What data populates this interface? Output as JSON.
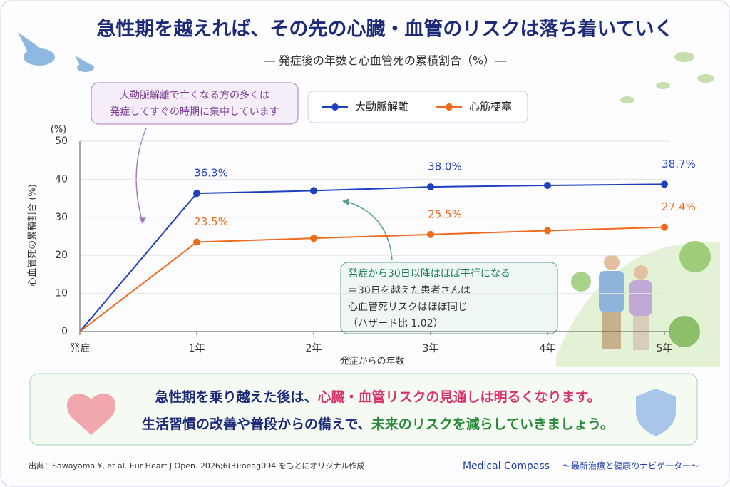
{
  "header": {
    "title": "急性期を越えれば、その先の心臓・血管のリスクは落ち着いていく",
    "subtitle": "― 発症後の年数と心血管死の累積割合（%）―"
  },
  "chart_data": {
    "type": "line",
    "categories": [
      "発症",
      "1年",
      "2年",
      "3年",
      "4年",
      "5年"
    ],
    "series": [
      {
        "name": "大動脈解離",
        "color": "#1f3fbf",
        "values": [
          0,
          36.3,
          37.0,
          38.0,
          38.4,
          38.7
        ],
        "value_labels": [
          null,
          "36.3%",
          null,
          "38.0%",
          null,
          "38.7%"
        ]
      },
      {
        "name": "心筋梗塞",
        "color": "#f06a1e",
        "values": [
          0,
          23.5,
          24.5,
          25.5,
          26.5,
          27.4
        ],
        "value_labels": [
          null,
          "23.5%",
          null,
          "25.5%",
          null,
          "27.4%"
        ]
      }
    ],
    "ylim": [
      0,
      50
    ],
    "yticks": [
      0,
      10,
      20,
      30,
      40,
      50
    ],
    "grid": true,
    "legend": "top",
    "y_unit": "(%)",
    "ylabel": "心血管死の累積割合 (%)",
    "xlabel": "発症からの年数",
    "annotations": [
      {
        "lines": [
          "大動脈解離で亡くなる方の多くは",
          "発症してすぐの時期に集中しています"
        ]
      },
      {
        "lines": [
          "発症から30日以降はほぼ平行になる",
          "＝30日を越えた患者さんは",
          "心血管死リスクはほぼ同じ",
          "（ハザード比 1.02）"
        ]
      }
    ]
  },
  "message": {
    "line1": [
      "急性期を乗り越えた後は、",
      "心臓・血管リスクの見通しは明るくなります。"
    ],
    "line2": [
      "生活習慣の改善や普段からの備えで、",
      "未来のリスクを減らしていきましょう。"
    ]
  },
  "footer": {
    "source": "出典：Sawayama Y, et al. Eur Heart J Open. 2026;6(3):oeag094 をもとにオリジナル作成",
    "brand": "Medical Compass",
    "tagline": "～最新治療と健康のナビゲーター～"
  }
}
